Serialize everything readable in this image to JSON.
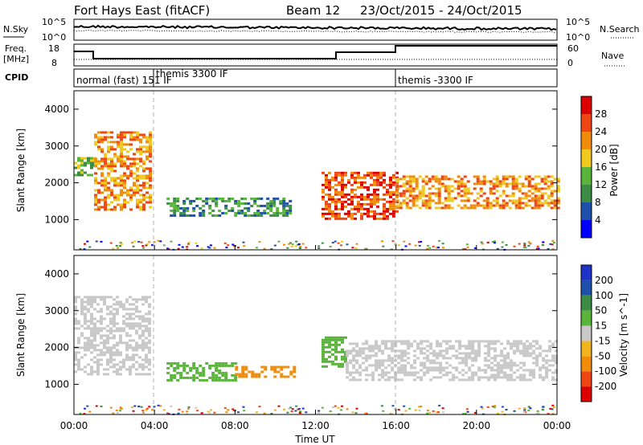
{
  "header": {
    "station": "Fort Hays East (fitACF)",
    "beam": "Beam 12",
    "date_range": "23/Oct/2015 - 24/Oct/2015"
  },
  "nsky_panel": {
    "left_label": "N.Sky",
    "right_label": "N.Search",
    "left_ticks": [
      "10^5",
      "10^0"
    ],
    "right_ticks": [
      "10^5",
      "10^0"
    ]
  },
  "freq_panel": {
    "left_label": "Freq.",
    "left_unit": "[MHz]",
    "right_label": "Nave",
    "left_ticks": [
      "18",
      "8"
    ],
    "right_ticks": [
      "60",
      "0"
    ]
  },
  "cpid_panel": {
    "label": "CPID",
    "modes": [
      "normal (fast) 151 IF",
      "themis 3300 IF",
      "themis -3300 IF"
    ]
  },
  "chart_data": [
    {
      "type": "heatmap",
      "name": "power",
      "ylabel": "Slant Range [km]",
      "yticks": [
        1000,
        2000,
        3000,
        4000
      ],
      "ylim": [
        180,
        4500
      ],
      "colorbar_label": "Power [dB]",
      "colorbar_ticks": [
        4,
        8,
        12,
        16,
        20,
        24,
        28
      ],
      "colorbar_range": [
        0,
        32
      ],
      "colors": [
        "#0000ff",
        "#1e50aa",
        "#3c8c46",
        "#5ab43c",
        "#f0c81e",
        "#f08c0a",
        "#f04614",
        "#dc0000"
      ],
      "echo_regions": [
        {
          "t": [
            0.0,
            1.0
          ],
          "range": [
            2200,
            2700
          ],
          "level": 3
        },
        {
          "t": [
            1.0,
            3.8
          ],
          "range": [
            1300,
            3400
          ],
          "level": 5
        },
        {
          "t": [
            4.6,
            10.8
          ],
          "range": [
            1100,
            1600
          ],
          "level": 2
        },
        {
          "t": [
            12.3,
            16.0
          ],
          "range": [
            1000,
            2300
          ],
          "level": 6
        },
        {
          "t": [
            16.0,
            24.0
          ],
          "range": [
            1300,
            2200
          ],
          "level": 5
        }
      ]
    },
    {
      "type": "heatmap",
      "name": "velocity",
      "xlabel": "Time UT",
      "xticks": [
        "00:00",
        "04:00",
        "08:00",
        "12:00",
        "16:00",
        "20:00",
        "00:00"
      ],
      "xlim": [
        0,
        24
      ],
      "ylabel": "Slant Range [km]",
      "yticks": [
        1000,
        2000,
        3000,
        4000
      ],
      "ylim": [
        180,
        4500
      ],
      "colorbar_label": "Velocity [m s^-1]",
      "colorbar_ticks": [
        -200,
        -100,
        -50,
        -15,
        15,
        50,
        100,
        200
      ],
      "colors": [
        "#dc0000",
        "#f04614",
        "#f08c0a",
        "#f0b41e",
        "#c8c8c8",
        "#5ab43c",
        "#3c8c46",
        "#1e50aa",
        "#1e32c8"
      ],
      "echo_regions": [
        {
          "t": [
            0.0,
            3.8
          ],
          "range": [
            1300,
            3400
          ],
          "velocity": "ground"
        },
        {
          "t": [
            4.6,
            8.0
          ],
          "range": [
            1100,
            1600
          ],
          "velocity": 40
        },
        {
          "t": [
            8.0,
            11.0
          ],
          "range": [
            1200,
            1500
          ],
          "velocity": -40
        },
        {
          "t": [
            12.3,
            13.5
          ],
          "range": [
            1500,
            2300
          ],
          "velocity": 40
        },
        {
          "t": [
            13.5,
            24.0
          ],
          "range": [
            1100,
            2200
          ],
          "velocity": "ground"
        }
      ]
    }
  ]
}
